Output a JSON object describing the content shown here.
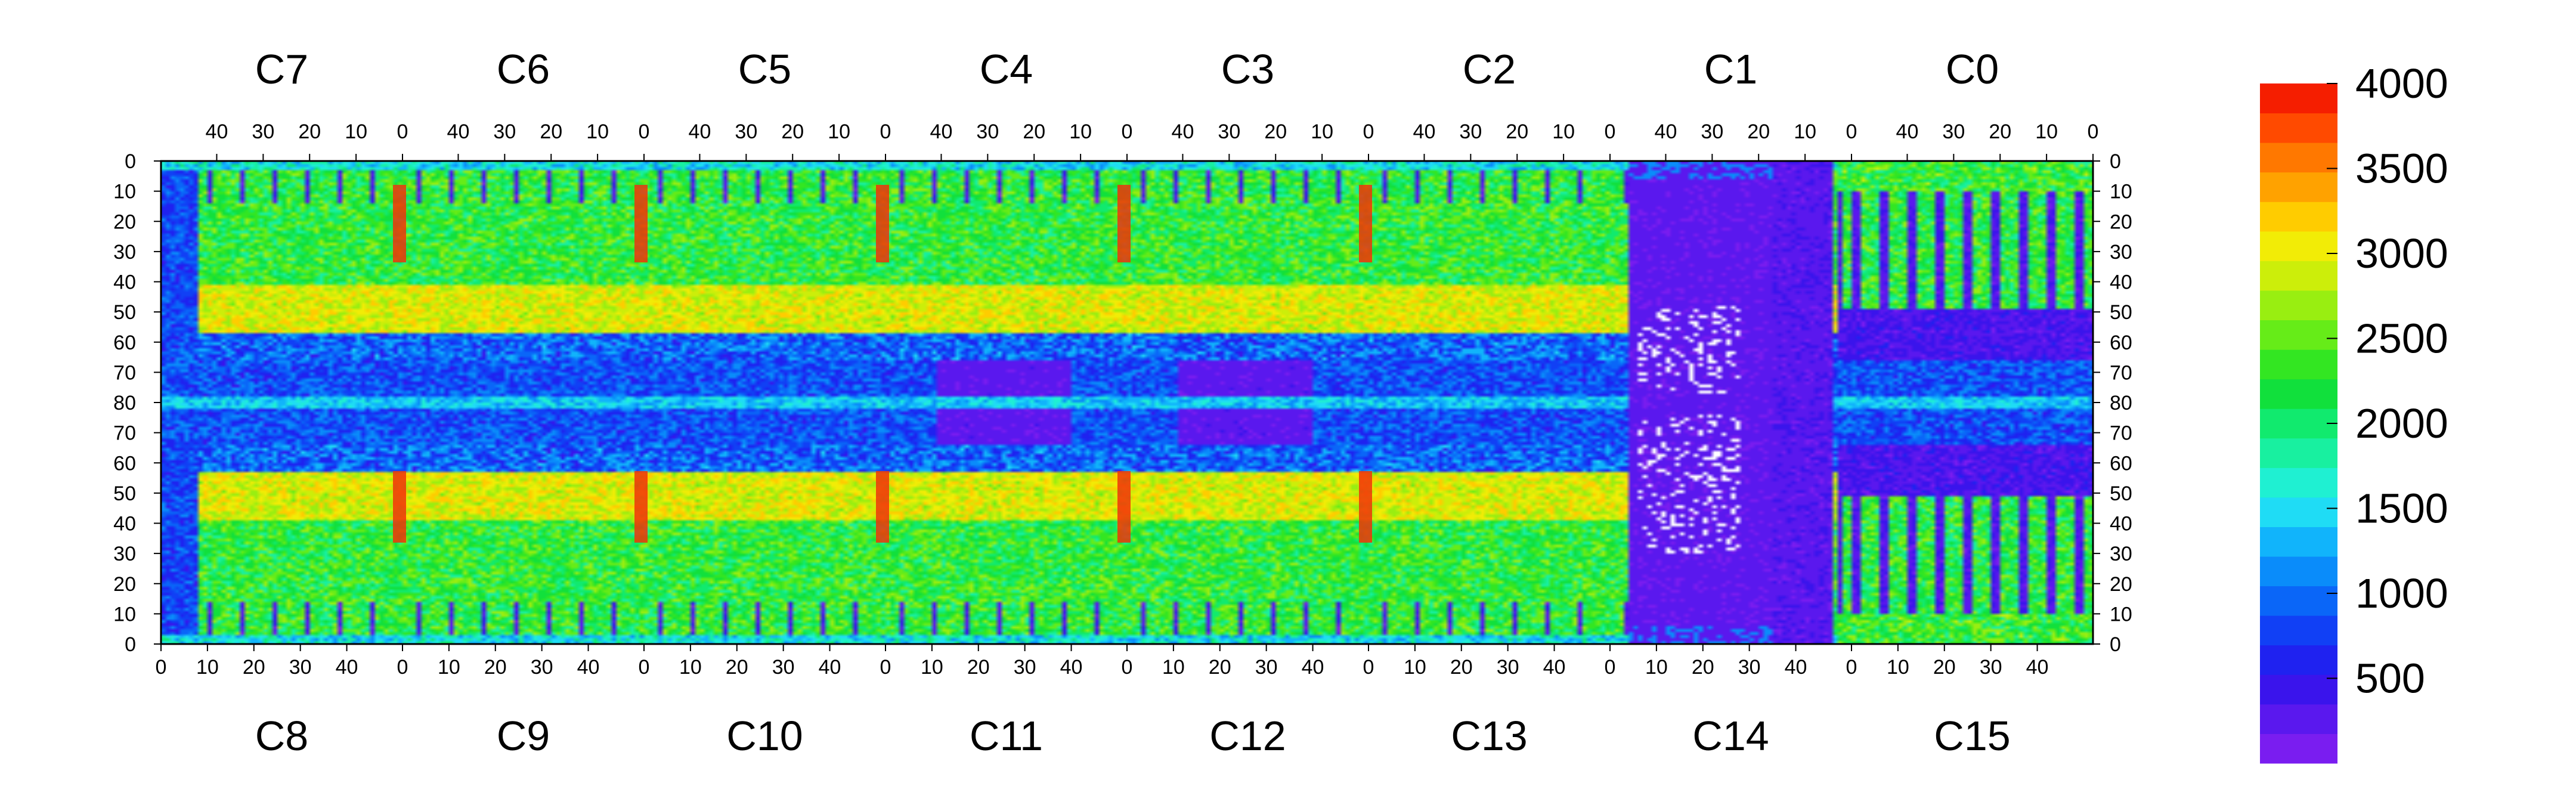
{
  "chart_data": {
    "type": "heatmap",
    "title": "",
    "xlabel": "",
    "ylabel": "",
    "grid": false,
    "legend": "colorbar-right",
    "top_chips": [
      "C7",
      "C6",
      "C5",
      "C4",
      "C3",
      "C2",
      "C1",
      "C0"
    ],
    "bottom_chips": [
      "C8",
      "C9",
      "C10",
      "C11",
      "C12",
      "C13",
      "C14",
      "C15"
    ],
    "top_axis_tick_labels": [
      "40",
      "30",
      "20",
      "10",
      "0"
    ],
    "bottom_axis_tick_labels": [
      "0",
      "10",
      "20",
      "30",
      "40"
    ],
    "y_axis_tick_labels": [
      "0",
      "10",
      "20",
      "30",
      "40",
      "50",
      "60",
      "70",
      "80",
      "70",
      "60",
      "50",
      "40",
      "30",
      "20",
      "10",
      "0"
    ],
    "chip_columns": 52,
    "rows": 160,
    "zlim": [
      0,
      4000
    ],
    "colorbar_tick_labels": [
      "500",
      "1000",
      "1500",
      "2000",
      "2500",
      "3000",
      "3500",
      "4000"
    ],
    "colorbar_tick_values": [
      500,
      1000,
      1500,
      2000,
      2500,
      3000,
      3500,
      4000
    ],
    "colorscale": [
      "#7a1df0",
      "#5a18ee",
      "#3a14ec",
      "#1f22f0",
      "#1140f5",
      "#0a66f8",
      "#0a8cfa",
      "#11b4fb",
      "#1fdcf5",
      "#1ff0d2",
      "#18f0a0",
      "#11ea6e",
      "#11e03c",
      "#33e622",
      "#66ec18",
      "#99ee11",
      "#ccee0a",
      "#f2ec06",
      "#ffcc00",
      "#ffa200",
      "#ff7800",
      "#ff4a00",
      "#f51e00"
    ],
    "masked_color": "#ffffff",
    "summary_levels": {
      "inactive_area": 150,
      "background": 500,
      "edge_region": 1100,
      "typical_active": 1800,
      "bright_active": 2600,
      "hot_column": 3700
    }
  }
}
